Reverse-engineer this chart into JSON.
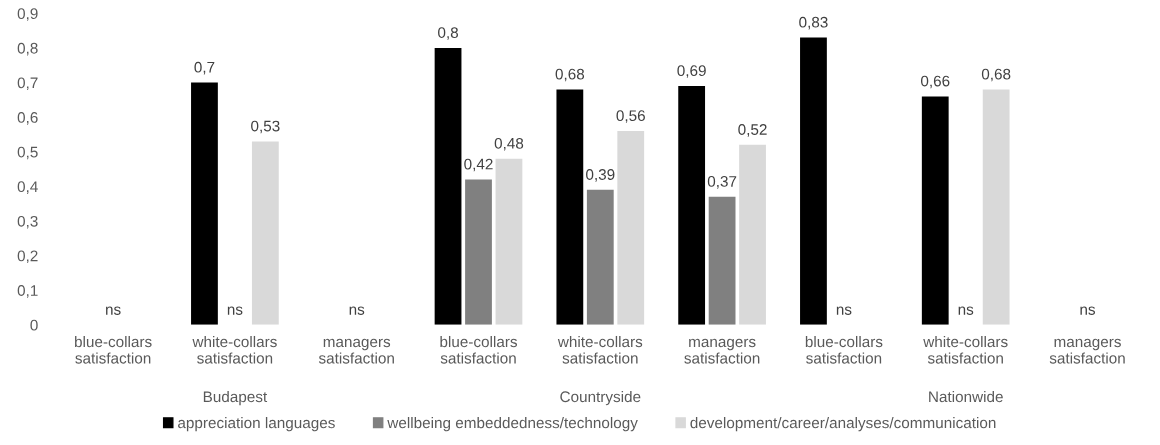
{
  "chart_data": {
    "type": "bar",
    "categories": [
      "blue-collars\nsatisfaction",
      "white-collars\nsatisfaction",
      "managers\nsatisfaction",
      "blue-collars\nsatisfaction",
      "white-collars\nsatisfaction",
      "managers\nsatisfaction",
      "blue-collars\nsatisfaction",
      "white-collars\nsatisfaction",
      "managers\nsatisfaction"
    ],
    "series": [
      {
        "name": "appreciation languages",
        "color": "#000000",
        "values": [
          null,
          0.7,
          null,
          0.8,
          0.68,
          0.69,
          0.83,
          0.66,
          null
        ],
        "value_labels": [
          null,
          "0,7",
          null,
          "0,8",
          "0,68",
          "0,69",
          "0,83",
          "0,66",
          null
        ]
      },
      {
        "name": "wellbeing embeddedness/technology",
        "color": "#808080",
        "values": [
          null,
          null,
          null,
          0.42,
          0.39,
          0.37,
          null,
          null,
          null
        ],
        "value_labels": [
          "ns",
          "ns",
          "ns",
          "0,42",
          "0,39",
          "0,37",
          "ns",
          "ns",
          "ns"
        ]
      },
      {
        "name": "development/career/analyses/communication",
        "color": "#d9d9d9",
        "values": [
          null,
          0.53,
          null,
          0.48,
          0.56,
          0.52,
          null,
          0.68,
          null
        ],
        "value_labels": [
          null,
          "0,53",
          null,
          "0,48",
          "0,56",
          "0,52",
          null,
          "0,68",
          null
        ]
      }
    ],
    "annotations": [
      "Budapest",
      "Countryside",
      "Nationwide"
    ],
    "ylim": [
      0,
      0.9
    ],
    "yticks": [
      0,
      {
        "value": 0.1,
        "label": "0,1"
      },
      {
        "value": 0.2,
        "label": "0,2"
      },
      {
        "value": 0.3,
        "label": "0,3"
      },
      {
        "value": 0.4,
        "label": "0,4"
      },
      {
        "value": 0.5,
        "label": "0,5"
      },
      {
        "value": 0.6,
        "label": "0,6"
      },
      {
        "value": 0.7,
        "label": "0,7"
      },
      {
        "value": 0.8,
        "label": "0,8"
      },
      {
        "value": 0.9,
        "label": "0,9"
      }
    ],
    "grid": false,
    "legend": "bottom"
  }
}
